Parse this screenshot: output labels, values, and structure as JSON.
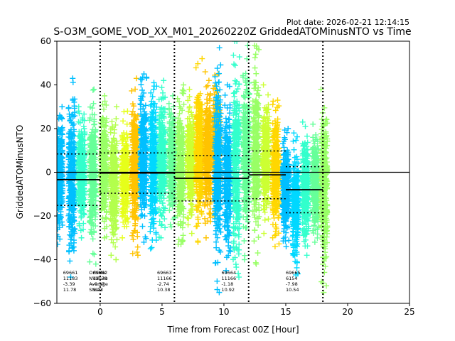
{
  "chart_data": {
    "type": "scatter",
    "title": "S-O3M_GOME_VOD_XX_M01_20260220Z GriddedATOMinusNTO vs Time",
    "plot_date": "Plot date: 2026-02-21 12:14:15",
    "xlabel": "Time from Forecast 00Z [Hour]",
    "ylabel": "GriddedATOMinusNTO",
    "xlim": [
      -3.5,
      25
    ],
    "ylim": [
      -60,
      60
    ],
    "xticks": [
      0,
      5,
      10,
      15,
      20,
      25
    ],
    "yticks": [
      -60,
      -40,
      -20,
      0,
      20,
      40,
      60
    ],
    "marker": "+",
    "zero_line": 0,
    "orbit_boundaries": [
      0,
      6,
      12,
      18
    ],
    "clusters": [
      {
        "x": -3.3,
        "lo": -33,
        "hi": 30,
        "color": "#00bfff"
      },
      {
        "x": -2.3,
        "lo": -48,
        "hi": 43,
        "color": "#00bfff"
      },
      {
        "x": -1.5,
        "lo": -30,
        "hi": 30,
        "color": "#33ffcc"
      },
      {
        "x": -0.6,
        "lo": -42,
        "hi": 38,
        "color": "#66ff99"
      },
      {
        "x": 0.3,
        "lo": -30,
        "hi": 35,
        "color": "#99ff66"
      },
      {
        "x": 1.1,
        "lo": -40,
        "hi": 30,
        "color": "#b3ff4d"
      },
      {
        "x": 2.0,
        "lo": -30,
        "hi": 28,
        "color": "#e6ff1a"
      },
      {
        "x": 2.8,
        "lo": -38,
        "hi": 43,
        "color": "#ffc300"
      },
      {
        "x": 3.5,
        "lo": -32,
        "hi": 45,
        "color": "#00bfff"
      },
      {
        "x": 4.3,
        "lo": -35,
        "hi": 41,
        "color": "#00d8ff"
      },
      {
        "x": 5.0,
        "lo": -30,
        "hi": 42,
        "color": "#33ffcc"
      },
      {
        "x": 5.8,
        "lo": -25,
        "hi": 35,
        "color": "#66ff99"
      },
      {
        "x": 6.5,
        "lo": -33,
        "hi": 40,
        "color": "#99ff66"
      },
      {
        "x": 7.3,
        "lo": -28,
        "hi": 38,
        "color": "#ccff33"
      },
      {
        "x": 8.0,
        "lo": -32,
        "hi": 52,
        "color": "#ffd700"
      },
      {
        "x": 8.7,
        "lo": -30,
        "hi": 46,
        "color": "#ffc300"
      },
      {
        "x": 9.4,
        "lo": -20,
        "hi": 45,
        "color": "#ffc300"
      },
      {
        "x": 9.5,
        "lo": -55,
        "hi": 57,
        "color": "#00bfff"
      },
      {
        "x": 10.3,
        "lo": -45,
        "hi": 40,
        "color": "#00bfff"
      },
      {
        "x": 11.0,
        "lo": -48,
        "hi": 60,
        "color": "#33ffcc"
      },
      {
        "x": 11.8,
        "lo": -40,
        "hi": 58,
        "color": "#66ff99"
      },
      {
        "x": 12.6,
        "lo": -42,
        "hi": 58,
        "color": "#99ff66"
      },
      {
        "x": 13.4,
        "lo": -28,
        "hi": 40,
        "color": "#ccff33"
      },
      {
        "x": 14.2,
        "lo": -34,
        "hi": 33,
        "color": "#ffd700"
      },
      {
        "x": 15.0,
        "lo": -34,
        "hi": 20,
        "color": "#00bfff"
      },
      {
        "x": 15.8,
        "lo": -47,
        "hi": 18,
        "color": "#00d8ff"
      },
      {
        "x": 16.6,
        "lo": -38,
        "hi": 23,
        "color": "#33ffcc"
      },
      {
        "x": 17.4,
        "lo": -32,
        "hi": 22,
        "color": "#66ff99"
      },
      {
        "x": 18.1,
        "lo": -55,
        "hi": 38,
        "color": "#99ff66"
      }
    ],
    "orbit_stats": [
      {
        "start": -3.5,
        "end": 0,
        "mean": -3.39,
        "stdev": 11.78
      },
      {
        "start": 0,
        "end": 6,
        "mean": -0.37,
        "stdev": 9.23
      },
      {
        "start": 6,
        "end": 12,
        "mean": -2.74,
        "stdev": 10.38
      },
      {
        "start": 12,
        "end": 15,
        "mean": -1.18,
        "stdev": 10.92
      },
      {
        "start": 15,
        "end": 18,
        "mean": -7.98,
        "stdev": 10.54
      }
    ],
    "stat_row_labels": [
      "OrbitNr",
      "NValues",
      "Average",
      "Stdev"
    ],
    "stat_blocks": [
      {
        "x": -3.0,
        "lines": [
          "69661",
          "11183",
          "-3.39",
          "11.78"
        ]
      },
      {
        "x": -0.6,
        "lines": [
          "69662",
          "13179",
          "-0.37",
          "9.23"
        ]
      },
      {
        "x": 4.6,
        "lines": [
          "69663",
          "11166",
          "-2.74",
          "10.38"
        ]
      },
      {
        "x": 9.8,
        "lines": [
          "69664",
          "11166",
          "-1.18",
          "10.92"
        ]
      },
      {
        "x": 15.0,
        "lines": [
          "69665",
          "6154",
          "-7.98",
          "10.54"
        ]
      }
    ]
  }
}
